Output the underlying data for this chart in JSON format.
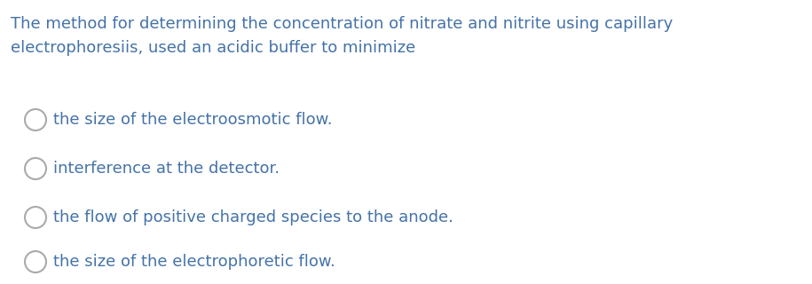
{
  "background_color": "#ffffff",
  "question_line1": "The method for determining the concentration of nitrate and nitrite using capillary",
  "question_line2": "electrophoresiis, used an acidic buffer to minimize",
  "options": [
    "the size of the electroosmotic flow.",
    "interference at the detector.",
    "the flow of positive charged species to the anode.",
    "the size of the electrophoretic flow."
  ],
  "text_color": "#4472a8",
  "question_fontsize": 13.0,
  "option_fontsize": 13.0,
  "fig_width": 9.15,
  "fig_height": 3.2,
  "dpi": 100
}
